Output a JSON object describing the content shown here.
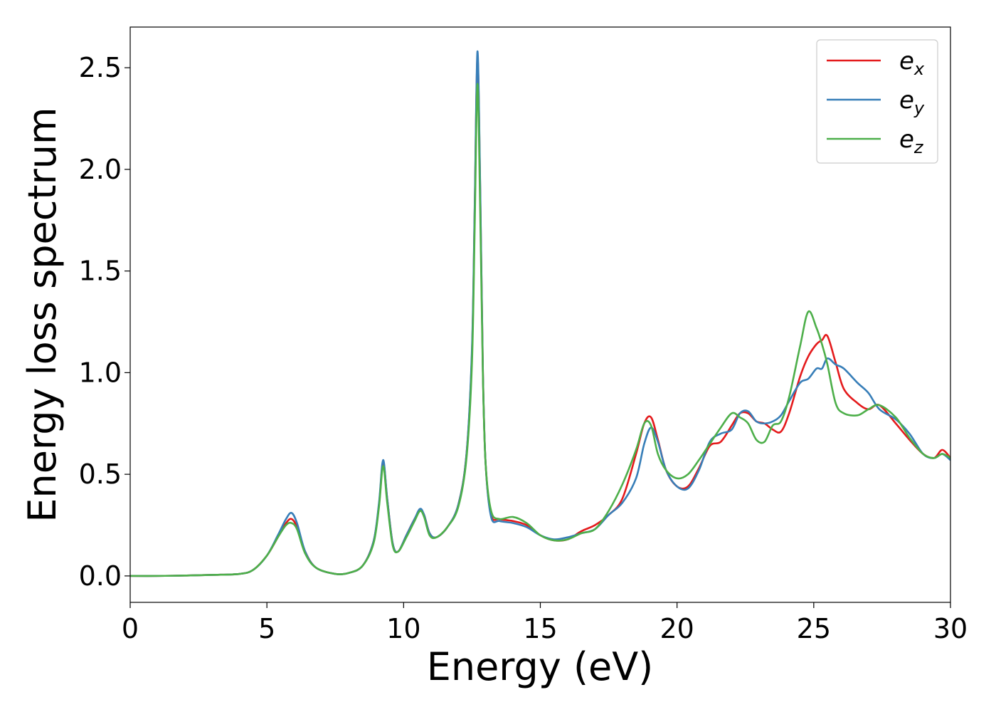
{
  "chart_data": {
    "type": "line",
    "xlabel": "Energy (eV)",
    "ylabel": "Energy loss spectrum",
    "xlim": [
      0,
      30
    ],
    "ylim": [
      -0.13,
      2.7
    ],
    "xticks": [
      0,
      5,
      10,
      15,
      20,
      25,
      30
    ],
    "xtick_labels": [
      "0",
      "5",
      "10",
      "15",
      "20",
      "25",
      "30"
    ],
    "yticks": [
      0.0,
      0.5,
      1.0,
      1.5,
      2.0,
      2.5
    ],
    "ytick_labels": [
      "0.0",
      "0.5",
      "1.0",
      "1.5",
      "2.0",
      "2.5"
    ],
    "grid": false,
    "legend_position": "top-right",
    "series": [
      {
        "name": "e_x",
        "legend_base": "e",
        "legend_sub": "x",
        "color": "#e41a1c",
        "x": [
          0,
          1,
          2,
          3,
          4,
          4.5,
          5,
          5.4,
          5.7,
          5.9,
          6.1,
          6.4,
          6.8,
          7.5,
          8,
          8.5,
          8.9,
          9.1,
          9.25,
          9.4,
          9.6,
          9.8,
          10.1,
          10.4,
          10.6,
          10.75,
          10.95,
          11.2,
          11.6,
          12,
          12.3,
          12.5,
          12.6,
          12.7,
          12.8,
          12.9,
          13,
          13.2,
          13.5,
          14,
          14.5,
          15,
          15.5,
          16,
          16.5,
          17,
          17.5,
          18,
          18.5,
          18.8,
          19.05,
          19.3,
          19.6,
          20,
          20.4,
          20.8,
          21.2,
          21.6,
          22,
          22.3,
          22.6,
          22.9,
          23.2,
          23.5,
          23.8,
          24.1,
          24.5,
          24.8,
          25.1,
          25.3,
          25.5,
          25.8,
          26.1,
          26.6,
          27,
          27.4,
          28,
          28.5,
          29,
          29.4,
          29.7,
          30
        ],
        "y": [
          0,
          0,
          0.002,
          0.005,
          0.01,
          0.03,
          0.1,
          0.19,
          0.26,
          0.28,
          0.24,
          0.12,
          0.04,
          0.01,
          0.015,
          0.05,
          0.17,
          0.35,
          0.56,
          0.38,
          0.16,
          0.12,
          0.2,
          0.28,
          0.32,
          0.3,
          0.21,
          0.19,
          0.24,
          0.35,
          0.6,
          1.1,
          1.8,
          2.55,
          1.9,
          1.0,
          0.55,
          0.3,
          0.28,
          0.27,
          0.25,
          0.2,
          0.175,
          0.18,
          0.22,
          0.25,
          0.3,
          0.38,
          0.6,
          0.75,
          0.78,
          0.67,
          0.52,
          0.44,
          0.44,
          0.53,
          0.64,
          0.66,
          0.74,
          0.8,
          0.8,
          0.76,
          0.75,
          0.72,
          0.71,
          0.8,
          0.98,
          1.08,
          1.14,
          1.16,
          1.18,
          1.05,
          0.92,
          0.85,
          0.82,
          0.84,
          0.75,
          0.67,
          0.6,
          0.58,
          0.62,
          0.58
        ]
      },
      {
        "name": "e_y",
        "legend_base": "e",
        "legend_sub": "y",
        "color": "#377eb8",
        "x": [
          0,
          1,
          2,
          3,
          4,
          4.5,
          5,
          5.4,
          5.7,
          5.9,
          6.1,
          6.4,
          6.8,
          7.5,
          8,
          8.5,
          8.9,
          9.1,
          9.25,
          9.4,
          9.6,
          9.8,
          10.1,
          10.4,
          10.6,
          10.75,
          10.95,
          11.2,
          11.6,
          12,
          12.3,
          12.5,
          12.6,
          12.7,
          12.8,
          12.9,
          13,
          13.2,
          13.5,
          14,
          14.5,
          15,
          15.5,
          16,
          16.5,
          17,
          17.5,
          18,
          18.5,
          18.8,
          19.05,
          19.3,
          19.6,
          20,
          20.4,
          20.8,
          21.2,
          21.6,
          22,
          22.3,
          22.6,
          22.9,
          23.2,
          23.5,
          23.8,
          24.1,
          24.5,
          24.8,
          25.1,
          25.3,
          25.5,
          25.8,
          26.1,
          26.6,
          27,
          27.4,
          28,
          28.5,
          29,
          29.4,
          29.7,
          30
        ],
        "y": [
          0,
          0,
          0.002,
          0.005,
          0.01,
          0.03,
          0.1,
          0.2,
          0.28,
          0.31,
          0.26,
          0.12,
          0.04,
          0.01,
          0.015,
          0.05,
          0.17,
          0.36,
          0.57,
          0.38,
          0.16,
          0.12,
          0.2,
          0.28,
          0.33,
          0.3,
          0.21,
          0.19,
          0.24,
          0.35,
          0.6,
          1.12,
          1.82,
          2.58,
          1.92,
          1.0,
          0.55,
          0.29,
          0.27,
          0.26,
          0.24,
          0.2,
          0.18,
          0.19,
          0.21,
          0.23,
          0.3,
          0.36,
          0.48,
          0.65,
          0.73,
          0.66,
          0.52,
          0.44,
          0.43,
          0.52,
          0.66,
          0.7,
          0.72,
          0.8,
          0.81,
          0.76,
          0.75,
          0.76,
          0.79,
          0.86,
          0.95,
          0.97,
          1.02,
          1.02,
          1.07,
          1.04,
          1.02,
          0.95,
          0.9,
          0.82,
          0.77,
          0.7,
          0.6,
          0.58,
          0.6,
          0.57
        ]
      },
      {
        "name": "e_z",
        "legend_base": "e",
        "legend_sub": "z",
        "color": "#4daf4a",
        "x": [
          0,
          1,
          2,
          3,
          4,
          4.5,
          5,
          5.4,
          5.7,
          5.9,
          6.1,
          6.4,
          6.8,
          7.5,
          8,
          8.5,
          8.9,
          9.1,
          9.25,
          9.4,
          9.6,
          9.8,
          10.1,
          10.4,
          10.6,
          10.75,
          10.95,
          11.2,
          11.6,
          12,
          12.3,
          12.5,
          12.6,
          12.7,
          12.8,
          12.9,
          13,
          13.2,
          13.5,
          14,
          14.5,
          15,
          15.5,
          16,
          16.5,
          17,
          17.5,
          18,
          18.5,
          18.8,
          19.05,
          19.3,
          19.6,
          20,
          20.4,
          20.8,
          21.2,
          21.6,
          22,
          22.3,
          22.6,
          22.9,
          23.2,
          23.5,
          23.8,
          24.1,
          24.5,
          24.8,
          25.1,
          25.3,
          25.5,
          25.8,
          26.1,
          26.6,
          27,
          27.4,
          28,
          28.5,
          29,
          29.4,
          29.7,
          30
        ],
        "y": [
          0,
          0,
          0.002,
          0.005,
          0.01,
          0.03,
          0.1,
          0.19,
          0.25,
          0.26,
          0.23,
          0.11,
          0.04,
          0.01,
          0.015,
          0.05,
          0.16,
          0.34,
          0.54,
          0.36,
          0.15,
          0.12,
          0.19,
          0.27,
          0.32,
          0.29,
          0.2,
          0.19,
          0.24,
          0.34,
          0.58,
          1.05,
          1.72,
          2.42,
          1.8,
          0.98,
          0.55,
          0.32,
          0.28,
          0.29,
          0.26,
          0.2,
          0.175,
          0.18,
          0.21,
          0.23,
          0.32,
          0.45,
          0.62,
          0.75,
          0.74,
          0.6,
          0.52,
          0.48,
          0.5,
          0.57,
          0.65,
          0.73,
          0.8,
          0.78,
          0.75,
          0.67,
          0.66,
          0.74,
          0.76,
          0.88,
          1.13,
          1.3,
          1.22,
          1.14,
          1.04,
          0.85,
          0.8,
          0.79,
          0.82,
          0.84,
          0.78,
          0.68,
          0.6,
          0.58,
          0.6,
          0.58
        ]
      }
    ]
  }
}
